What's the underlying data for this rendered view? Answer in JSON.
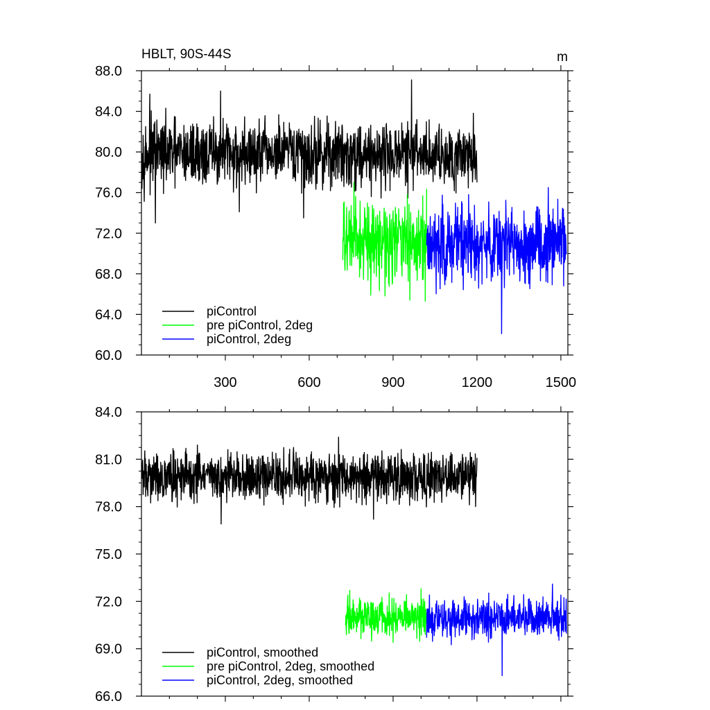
{
  "chart_data": [
    {
      "type": "line",
      "title": "HBLT, 90S-44S",
      "units": "m",
      "xlim": [
        0,
        1525
      ],
      "ylim": [
        60,
        88
      ],
      "xticks": [
        300,
        600,
        900,
        1200,
        1500
      ],
      "yticks": [
        "60.0",
        "64.0",
        "68.0",
        "72.0",
        "76.0",
        "80.0",
        "84.0",
        "88.0"
      ],
      "grid": false,
      "legend_position": "bottom-left",
      "series": [
        {
          "name": "piControl",
          "color": "#000000",
          "x_start": 1,
          "x_end": 1200,
          "mean": 79.8,
          "spread": 1.6,
          "notable": [
            [
              30,
              85.7
            ],
            [
              50,
              73.0
            ],
            [
              283,
              86.0
            ],
            [
              350,
              74.1
            ],
            [
              580,
              73.5
            ],
            [
              966,
              87.1
            ],
            [
              1200,
              77.0
            ]
          ]
        },
        {
          "name": "pre piControl, 2deg",
          "color": "#00ff00",
          "x_start": 720,
          "x_end": 1020,
          "mean": 71.2,
          "spread": 1.9,
          "notable": [
            [
              760,
              77.0
            ],
            [
              820,
              65.9
            ],
            [
              960,
              65.4
            ],
            [
              1015,
              65.3
            ]
          ]
        },
        {
          "name": "piControl, 2deg",
          "color": "#0000ff",
          "x_start": 1020,
          "x_end": 1520,
          "mean": 71.0,
          "spread": 1.9,
          "notable": [
            [
              1170,
              75.8
            ],
            [
              1288,
              62.1
            ],
            [
              1455,
              76.5
            ],
            [
              1510,
              66.8
            ]
          ]
        }
      ],
      "legend": [
        {
          "label": "piControl",
          "color": "#000000"
        },
        {
          "label": "pre piControl, 2deg",
          "color": "#00ff00"
        },
        {
          "label": "piControl, 2deg",
          "color": "#0000ff"
        }
      ]
    },
    {
      "type": "line",
      "xlim": [
        0,
        1525
      ],
      "ylim": [
        66,
        84
      ],
      "yticks": [
        "66.0",
        "69.0",
        "72.0",
        "75.0",
        "78.0",
        "81.0",
        "84.0"
      ],
      "grid": false,
      "legend_position": "bottom-left",
      "series": [
        {
          "name": "piControl, smoothed",
          "color": "#000000",
          "x_start": 1,
          "x_end": 1200,
          "mean": 79.9,
          "spread": 0.75,
          "notable": [
            [
              200,
              81.9
            ],
            [
              285,
              76.9
            ],
            [
              705,
              82.4
            ],
            [
              830,
              77.2
            ],
            [
              1195,
              78.0
            ]
          ]
        },
        {
          "name": "pre piControl, 2deg, smoothed",
          "color": "#00ff00",
          "x_start": 730,
          "x_end": 1020,
          "mean": 71.0,
          "spread": 0.6,
          "notable": [
            [
              745,
              72.7
            ],
            [
              900,
              69.4
            ],
            [
              1000,
              72.8
            ],
            [
              1015,
              69.9
            ]
          ]
        },
        {
          "name": "piControl, 2deg, smoothed",
          "color": "#0000ff",
          "x_start": 1020,
          "x_end": 1520,
          "mean": 70.9,
          "spread": 0.6,
          "notable": [
            [
              1030,
              72.4
            ],
            [
              1290,
              67.3
            ],
            [
              1470,
              73.1
            ],
            [
              1500,
              72.4
            ]
          ]
        }
      ],
      "legend": [
        {
          "label": "piControl, smoothed",
          "color": "#000000"
        },
        {
          "label": "pre piControl, 2deg, smoothed",
          "color": "#00ff00"
        },
        {
          "label": "piControl, 2deg, smoothed",
          "color": "#0000ff"
        }
      ]
    }
  ]
}
